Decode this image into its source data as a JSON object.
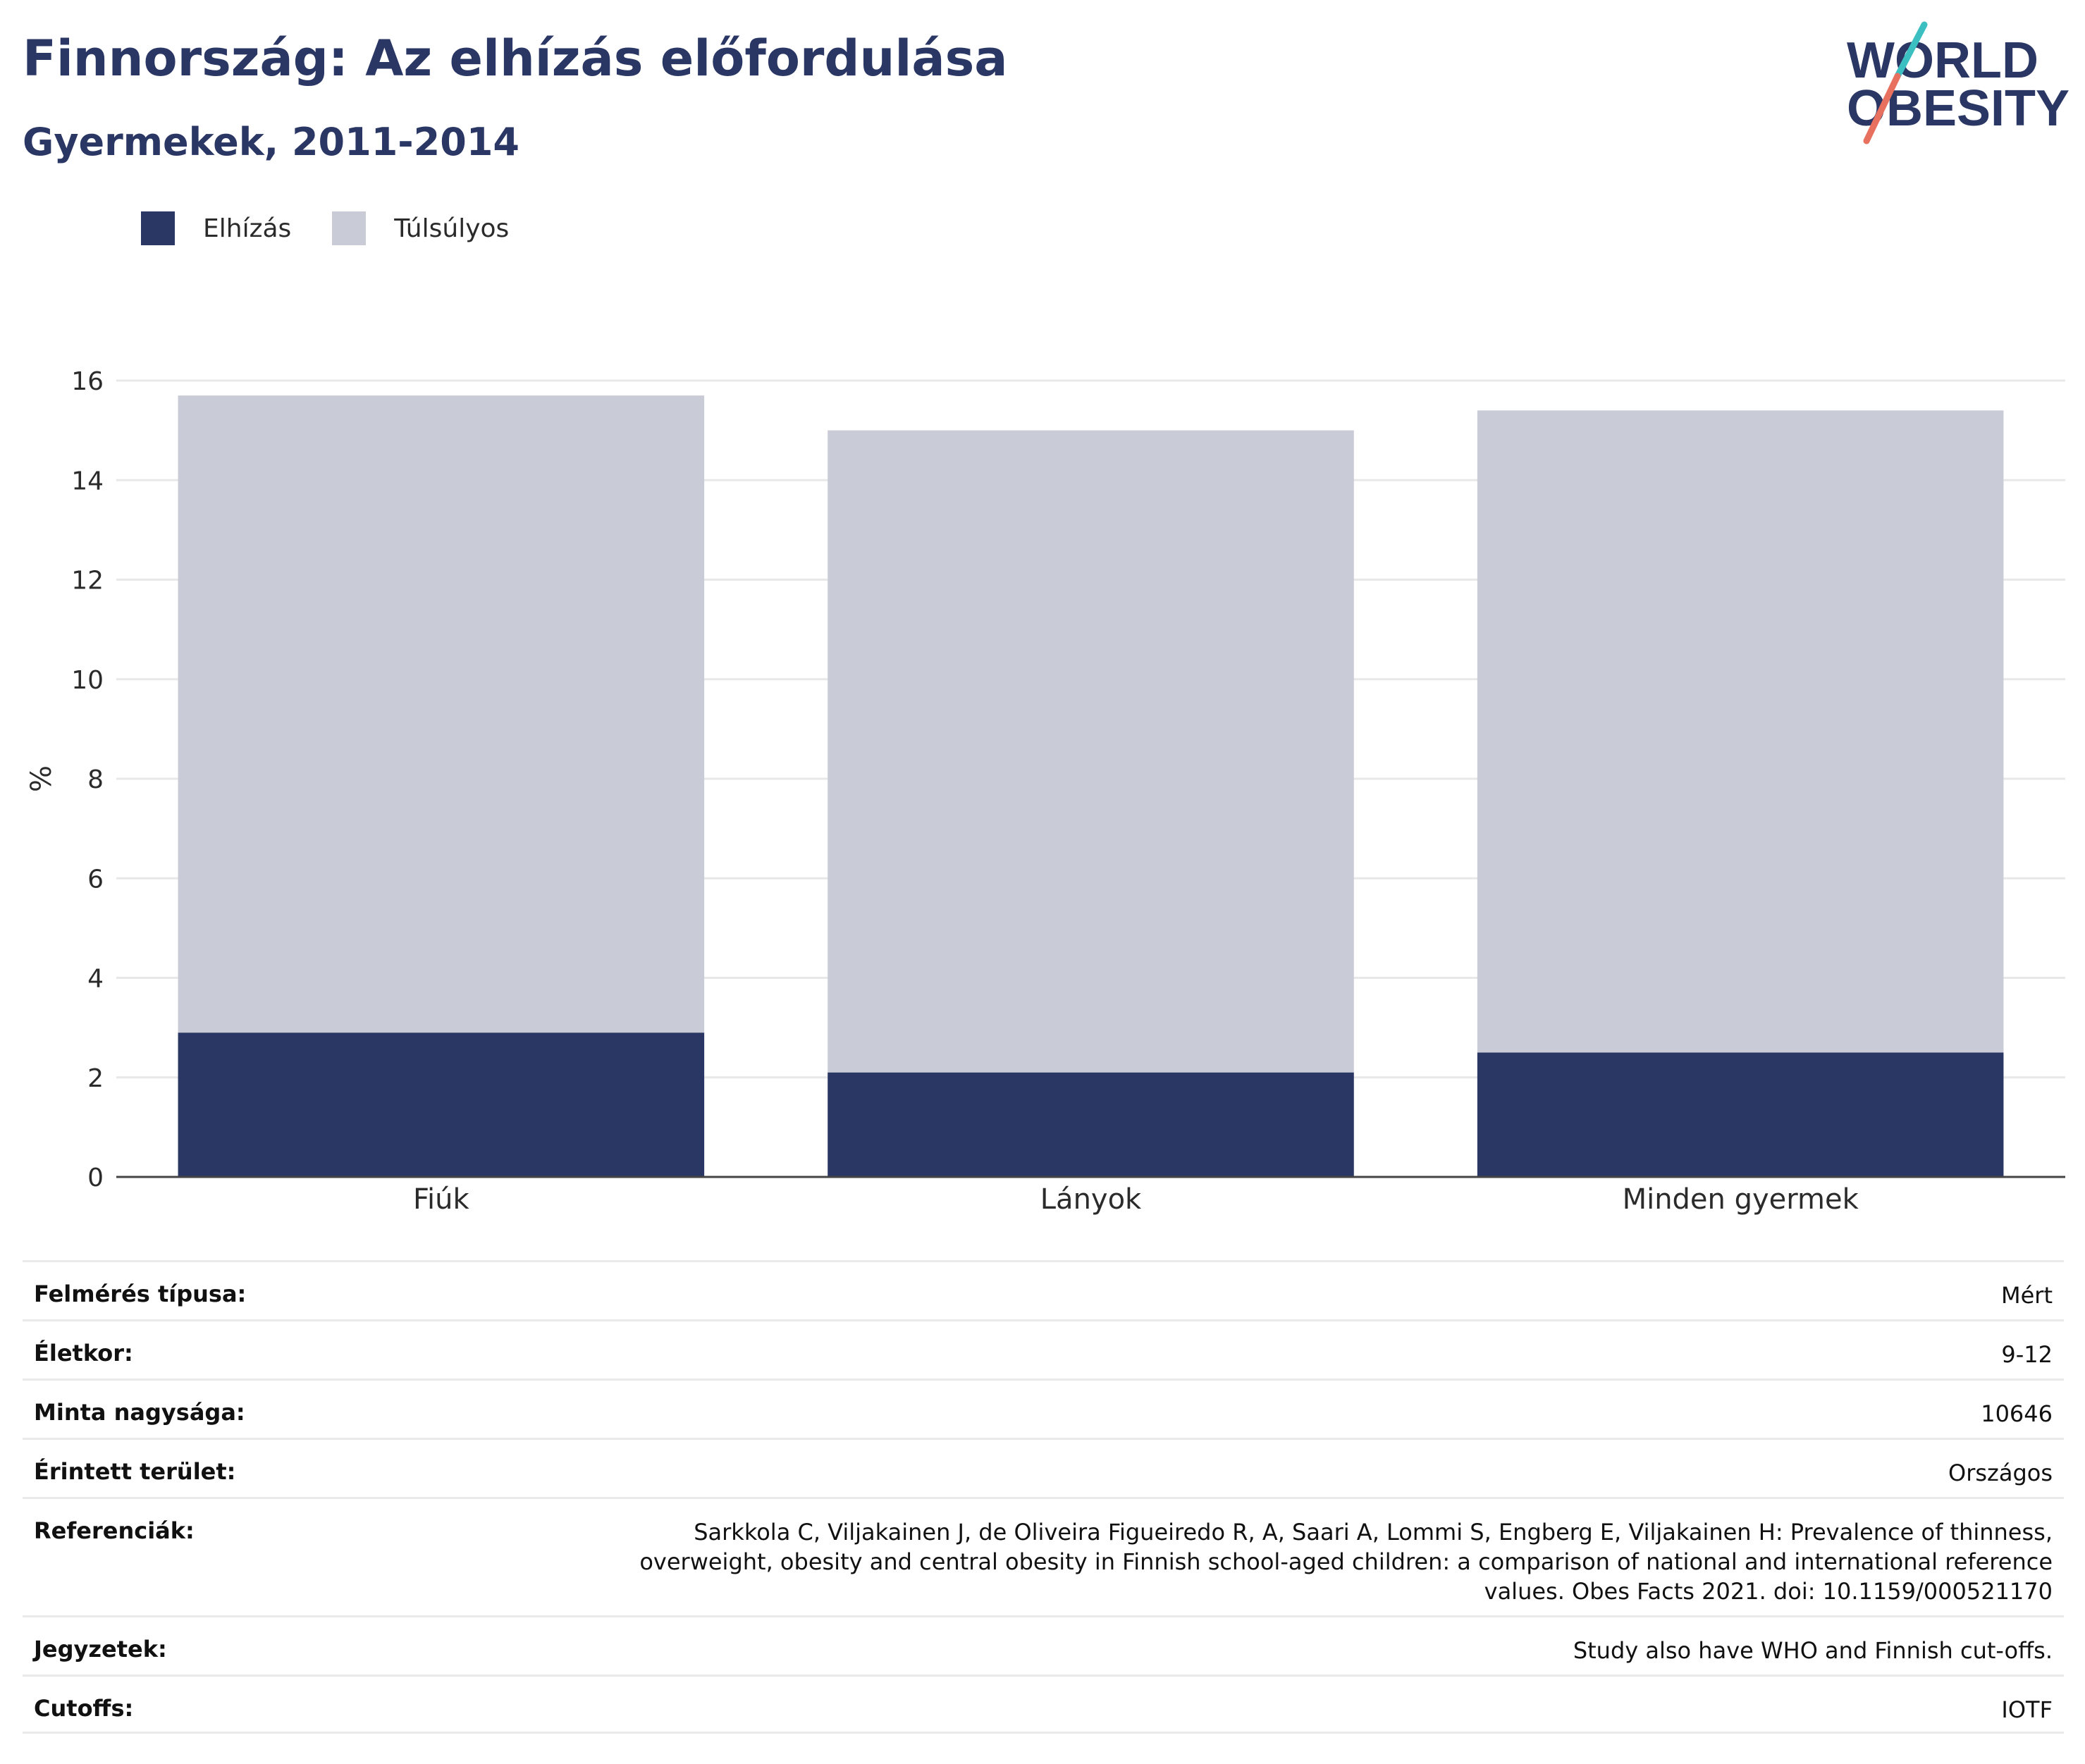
{
  "header": {
    "title": "Finnország: Az elhízás előfordulása",
    "subtitle": "Gyermekek, 2011-2014",
    "logo_line1": "WORLD",
    "logo_line2": "OBESITY"
  },
  "colors": {
    "obesity": "#2a3664",
    "overweight": "#c9cbd7",
    "logo_teal": "#3bbfc1",
    "logo_coral": "#e8705f",
    "text": "#2a3664"
  },
  "legend": [
    {
      "label": "Elhízás",
      "color": "#2a3664"
    },
    {
      "label": "Túlsúlyos",
      "color": "#c9cbd7"
    }
  ],
  "chart_data": {
    "type": "bar",
    "stacked": true,
    "categories": [
      "Fiúk",
      "Lányok",
      "Minden gyermek"
    ],
    "series": [
      {
        "name": "Elhízás",
        "values": [
          2.9,
          2.1,
          2.5
        ],
        "color": "#2a3664"
      },
      {
        "name": "Túlsúlyos",
        "values": [
          12.8,
          12.9,
          12.9
        ],
        "color": "#c9cbd7"
      }
    ],
    "ylabel": "%",
    "ylim": [
      0,
      16
    ],
    "yticks": [
      0,
      2,
      4,
      6,
      8,
      10,
      12,
      14,
      16
    ],
    "grid": true,
    "legend_position": "top-left"
  },
  "info_table": [
    {
      "label": "Felmérés típusa:",
      "value": "Mért"
    },
    {
      "label": "Életkor:",
      "value": "9-12"
    },
    {
      "label": "Minta nagysága:",
      "value": "10646"
    },
    {
      "label": "Érintett terület:",
      "value": "Országos"
    },
    {
      "label": "Referenciák:",
      "value": "Sarkkola C, Viljakainen J, de Oliveira Figueiredo R, A, Saari A, Lommi S, Engberg E, Viljakainen H: Prevalence of thinness, overweight, obesity and central obesity in Finnish school-aged children: a comparison of national and international reference values. Obes Facts 2021. doi: 10.1159/000521170"
    },
    {
      "label": "Jegyzetek:",
      "value": "Study also have WHO and Finnish cut-offs."
    },
    {
      "label": "Cutoffs:",
      "value": "IOTF"
    }
  ]
}
